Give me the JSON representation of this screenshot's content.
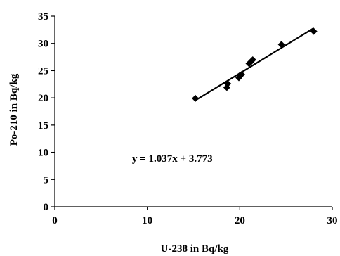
{
  "chart_data": {
    "type": "scatter",
    "xlabel": "U-238 in Bq/kg",
    "ylabel": "Po-210 in Bq/kg",
    "xlim": [
      0,
      30
    ],
    "ylim": [
      0,
      35
    ],
    "xticks": [
      "0",
      "10",
      "20",
      "30"
    ],
    "yticks": [
      "0",
      "5",
      "10",
      "15",
      "20",
      "25",
      "30",
      "35"
    ],
    "grid": false,
    "legend": "none",
    "series": [
      {
        "marker": "diamond",
        "color": "#000000",
        "x": [
          15.2,
          18.6,
          18.7,
          19.9,
          20.0,
          20.2,
          21.0,
          21.2,
          21.4,
          24.5,
          28.0
        ],
        "y": [
          19.9,
          21.9,
          22.6,
          23.7,
          24.1,
          24.3,
          26.3,
          26.6,
          27.0,
          29.8,
          32.2
        ]
      }
    ],
    "trendline": {
      "type": "linear",
      "slope": 1.037,
      "intercept": 3.773,
      "x_range": [
        15.2,
        28.0
      ],
      "equation_label": "y = 1.037x + 3.773"
    }
  }
}
